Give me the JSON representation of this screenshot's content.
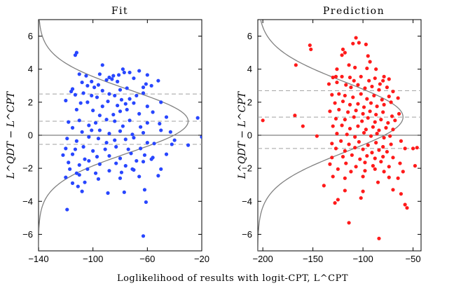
{
  "chart_data": [
    {
      "type": "scatter",
      "title": "Fit",
      "xlabel": "Loglikelihood of results with logit-CPT, L^CPT",
      "ylabel": "L^QDT − L^CPT",
      "xlim": [
        -140,
        -20
      ],
      "ylim": [
        -7,
        7
      ],
      "xticks": [
        -140,
        -100,
        -60,
        -20
      ],
      "yticks": [
        -6,
        -4,
        -2,
        0,
        2,
        4,
        6
      ],
      "point_color": "#2846ff",
      "zero_line": 0,
      "dashed_lines": [
        2.5,
        0.85,
        -0.55
      ],
      "density_curve": {
        "mu": 0.85,
        "sigma": 1.9,
        "peak_x": -30,
        "base_x": -140,
        "color": "#808080"
      },
      "points": [
        [
          -112,
          5
        ],
        [
          -113,
          4.85
        ],
        [
          -93,
          4.25
        ],
        [
          -110,
          3.7
        ],
        [
          -105,
          3.6
        ],
        [
          -95,
          3.7
        ],
        [
          -85,
          3.6
        ],
        [
          -81,
          3.65
        ],
        [
          -78,
          4
        ],
        [
          -77,
          3.8
        ],
        [
          -73,
          3.8
        ],
        [
          -70,
          3.45
        ],
        [
          -66,
          3.9
        ],
        [
          -60,
          3.65
        ],
        [
          -86,
          3.4
        ],
        [
          -88,
          3.5
        ],
        [
          -101,
          3.25
        ],
        [
          -96,
          3.05
        ],
        [
          -82,
          3.25
        ],
        [
          -90,
          3.35
        ],
        [
          -115,
          2.8
        ],
        [
          -108,
          3.2
        ],
        [
          -104,
          3.0
        ],
        [
          -99,
          2.9
        ],
        [
          -93,
          2.7
        ],
        [
          -80,
          2.75
        ],
        [
          -75,
          2.85
        ],
        [
          -63,
          2.9
        ],
        [
          -61,
          3.1
        ],
        [
          -57,
          3.0
        ],
        [
          -52,
          3.3
        ],
        [
          -116,
          2.65
        ],
        [
          -113,
          2.45
        ],
        [
          -107,
          2.55
        ],
        [
          -101,
          2.4
        ],
        [
          -97,
          2.3
        ],
        [
          -88,
          2.5
        ],
        [
          -84,
          2.4
        ],
        [
          -79,
          2.15
        ],
        [
          -73,
          2.2
        ],
        [
          -68,
          2.4
        ],
        [
          -63,
          2.55
        ],
        [
          -50,
          2.0
        ],
        [
          -120,
          2.1
        ],
        [
          -109,
          1.95
        ],
        [
          -104,
          2.0
        ],
        [
          -93,
          1.75
        ],
        [
          -89,
          2.05
        ],
        [
          -82,
          1.8
        ],
        [
          -76,
          1.9
        ],
        [
          -70,
          1.95
        ],
        [
          -60,
          1.75
        ],
        [
          -112,
          1.55
        ],
        [
          -100,
          1.5
        ],
        [
          -95,
          1.2
        ],
        [
          -85,
          1.25
        ],
        [
          -80,
          1.45
        ],
        [
          -75,
          1.55
        ],
        [
          -66,
          1.3
        ],
        [
          -56,
          1.4
        ],
        [
          -46,
          1.1
        ],
        [
          -23,
          1.05
        ],
        [
          -118,
          0.8
        ],
        [
          -115,
          0.45
        ],
        [
          -110,
          0.9
        ],
        [
          -103,
          0.6
        ],
        [
          -98,
          0.75
        ],
        [
          -90,
          0.95
        ],
        [
          -84,
          0.85
        ],
        [
          -78,
          0.55
        ],
        [
          -73,
          0.9
        ],
        [
          -65,
          0.5
        ],
        [
          -60,
          0.75
        ],
        [
          -51,
          0.7
        ],
        [
          -50,
          0.3
        ],
        [
          -43,
          0.2
        ],
        [
          -108,
          0.2
        ],
        [
          -101,
          0.3
        ],
        [
          -95,
          0.3
        ],
        [
          -88,
          0.1
        ],
        [
          -80,
          0.25
        ],
        [
          -71,
          0.05
        ],
        [
          -63,
          0.15
        ],
        [
          -119,
          -0.2
        ],
        [
          -112,
          -0.35
        ],
        [
          -103,
          -0.1
        ],
        [
          -96,
          -0.2
        ],
        [
          -90,
          -0.45
        ],
        [
          -84,
          -0.3
        ],
        [
          -76,
          -0.25
        ],
        [
          -70,
          -0.15
        ],
        [
          -60,
          -0.45
        ],
        [
          -55,
          -0.5
        ],
        [
          -42,
          -0.55
        ],
        [
          -40,
          -0.3
        ],
        [
          -30,
          -0.6
        ],
        [
          -20,
          -0.1
        ],
        [
          -120,
          -0.8
        ],
        [
          -113,
          -0.85
        ],
        [
          -107,
          -0.7
        ],
        [
          -100,
          -0.95
        ],
        [
          -91,
          -0.85
        ],
        [
          -83,
          -0.7
        ],
        [
          -74,
          -0.85
        ],
        [
          -65,
          -0.8
        ],
        [
          -122,
          -1.2
        ],
        [
          -115,
          -1.15
        ],
        [
          -106,
          -1.45
        ],
        [
          -97,
          -1.3
        ],
        [
          -88,
          -1.25
        ],
        [
          -80,
          -1.4
        ],
        [
          -72,
          -1.1
        ],
        [
          -62,
          -1.2
        ],
        [
          -56,
          -1.35
        ],
        [
          -46,
          -1.15
        ],
        [
          -118,
          -1.65
        ],
        [
          -110,
          -1.8
        ],
        [
          -103,
          -1.55
        ],
        [
          -95,
          -1.75
        ],
        [
          -83,
          -1.7
        ],
        [
          -76,
          -1.85
        ],
        [
          -68,
          -1.55
        ],
        [
          -63,
          -1.6
        ],
        [
          -57,
          -1.45
        ],
        [
          -117,
          -2.05
        ],
        [
          -112,
          -2.3
        ],
        [
          -104,
          -2.05
        ],
        [
          -98,
          -2.3
        ],
        [
          -88,
          -2.15
        ],
        [
          -79,
          -2.25
        ],
        [
          -71,
          -2.05
        ],
        [
          -70,
          -2.1
        ],
        [
          -50,
          -2.05
        ],
        [
          -120,
          -2.55
        ],
        [
          -110,
          -2.4
        ],
        [
          -96,
          -2.65
        ],
        [
          -80,
          -2.6
        ],
        [
          -66,
          -2.5
        ],
        [
          -52,
          -2.45
        ],
        [
          -115,
          -2.9
        ],
        [
          -111,
          -3.1
        ],
        [
          -106,
          -2.85
        ],
        [
          -89,
          -3.5
        ],
        [
          -77,
          -3.45
        ],
        [
          -62,
          -3.3
        ],
        [
          -108,
          -3.4
        ],
        [
          -61,
          -4.05
        ],
        [
          -119,
          -4.5
        ],
        [
          -63,
          -6.1
        ]
      ]
    },
    {
      "type": "scatter",
      "title": "Prediction",
      "xlabel": "",
      "ylabel": "L^QDT − L^CPT",
      "xlim": [
        -205,
        -42
      ],
      "ylim": [
        -7,
        7
      ],
      "xticks": [
        -200,
        -150,
        -100,
        -50
      ],
      "yticks": [
        -6,
        -4,
        -2,
        0,
        2,
        4,
        6
      ],
      "point_color": "#ff1a1a",
      "zero_line": 0,
      "dashed_lines": [
        2.7,
        1.1,
        -0.8
      ],
      "density_curve": {
        "mu": 1.1,
        "sigma": 2.1,
        "peak_x": -60,
        "base_x": -205,
        "color": "#808080"
      },
      "points": [
        [
          -107,
          5.9
        ],
        [
          -104,
          5.6
        ],
        [
          -110,
          5.55
        ],
        [
          -153,
          5.45
        ],
        [
          -152,
          5.2
        ],
        [
          -97,
          5.5
        ],
        [
          -120,
          5.2
        ],
        [
          -118,
          5.0
        ],
        [
          -121,
          4.85
        ],
        [
          -95,
          4.8
        ],
        [
          -93,
          4.45
        ],
        [
          -114,
          4.25
        ],
        [
          -108,
          4.1
        ],
        [
          -167,
          4.25
        ],
        [
          -126,
          4.0
        ],
        [
          -96,
          4.05
        ],
        [
          -87,
          4.0
        ],
        [
          -130,
          3.5
        ],
        [
          -127,
          3.55
        ],
        [
          -121,
          3.55
        ],
        [
          -113,
          3.5
        ],
        [
          -109,
          3.3
        ],
        [
          -102,
          3.55
        ],
        [
          -94,
          3.3
        ],
        [
          -88,
          3.45
        ],
        [
          -83,
          3.1
        ],
        [
          -80,
          3.3
        ],
        [
          -79,
          3.55
        ],
        [
          -74,
          3.4
        ],
        [
          -134,
          3.1
        ],
        [
          -126,
          3.2
        ],
        [
          -117,
          3.05
        ],
        [
          -112,
          2.9
        ],
        [
          -105,
          3.05
        ],
        [
          -98,
          2.85
        ],
        [
          -91,
          2.95
        ],
        [
          -84,
          2.75
        ],
        [
          -76,
          2.9
        ],
        [
          -70,
          2.65
        ],
        [
          -131,
          2.45
        ],
        [
          -124,
          2.5
        ],
        [
          -118,
          2.4
        ],
        [
          -110,
          2.3
        ],
        [
          -102,
          2.5
        ],
        [
          -96,
          2.2
        ],
        [
          -89,
          2.4
        ],
        [
          -81,
          2.15
        ],
        [
          -74,
          2.35
        ],
        [
          -65,
          2.25
        ],
        [
          -128,
          1.95
        ],
        [
          -120,
          2.05
        ],
        [
          -113,
          1.85
        ],
        [
          -105,
          1.9
        ],
        [
          -99,
          1.7
        ],
        [
          -92,
          1.95
        ],
        [
          -86,
          1.75
        ],
        [
          -79,
          1.85
        ],
        [
          -72,
          2.0
        ],
        [
          -133,
          1.45
        ],
        [
          -124,
          1.55
        ],
        [
          -115,
          1.4
        ],
        [
          -107,
          1.5
        ],
        [
          -100,
          1.3
        ],
        [
          -93,
          1.45
        ],
        [
          -87,
          1.25
        ],
        [
          -80,
          1.4
        ],
        [
          -71,
          1.15
        ],
        [
          -64,
          1.3
        ],
        [
          -168,
          1.2
        ],
        [
          -127,
          1.0
        ],
        [
          -118,
          0.95
        ],
        [
          -109,
          1.1
        ],
        [
          -101,
          0.85
        ],
        [
          -95,
          1.05
        ],
        [
          -88,
          0.8
        ],
        [
          -82,
          0.95
        ],
        [
          -75,
          0.75
        ],
        [
          -68,
          0.9
        ],
        [
          -200,
          0.9
        ],
        [
          -130,
          0.55
        ],
        [
          -121,
          0.6
        ],
        [
          -113,
          0.4
        ],
        [
          -105,
          0.55
        ],
        [
          -97,
          0.35
        ],
        [
          -90,
          0.5
        ],
        [
          -84,
          0.3
        ],
        [
          -77,
          0.45
        ],
        [
          -70,
          0.35
        ],
        [
          -160,
          0.55
        ],
        [
          -146,
          -0.05
        ],
        [
          -126,
          0.1
        ],
        [
          -116,
          0.05
        ],
        [
          -108,
          -0.1
        ],
        [
          -99,
          0.15
        ],
        [
          -92,
          -0.05
        ],
        [
          -86,
          0.1
        ],
        [
          -79,
          -0.15
        ],
        [
          -73,
          -0.05
        ],
        [
          -62,
          -0.35
        ],
        [
          -131,
          -0.5
        ],
        [
          -122,
          -0.35
        ],
        [
          -114,
          -0.55
        ],
        [
          -104,
          -0.4
        ],
        [
          -95,
          -0.6
        ],
        [
          -87,
          -0.45
        ],
        [
          -80,
          -0.7
        ],
        [
          -72,
          -0.55
        ],
        [
          -127,
          -0.8
        ],
        [
          -118,
          -0.95
        ],
        [
          -108,
          -0.75
        ],
        [
          -100,
          -0.85
        ],
        [
          -91,
          -1.05
        ],
        [
          -84,
          -0.9
        ],
        [
          -76,
          -1.0
        ],
        [
          -58,
          -0.8
        ],
        [
          -50,
          -0.8
        ],
        [
          -46,
          -0.75
        ],
        [
          -131,
          -1.35
        ],
        [
          -120,
          -1.3
        ],
        [
          -111,
          -1.2
        ],
        [
          -103,
          -1.45
        ],
        [
          -96,
          -1.25
        ],
        [
          -88,
          -1.4
        ],
        [
          -80,
          -1.3
        ],
        [
          -70,
          -1.35
        ],
        [
          -133,
          -1.75
        ],
        [
          -117,
          -1.7
        ],
        [
          -107,
          -1.9
        ],
        [
          -98,
          -1.65
        ],
        [
          -90,
          -1.85
        ],
        [
          -82,
          -1.6
        ],
        [
          -74,
          -1.9
        ],
        [
          -63,
          -1.7
        ],
        [
          -48,
          -1.85
        ],
        [
          -125,
          -2.05
        ],
        [
          -112,
          -2.2
        ],
        [
          -98,
          -2.15
        ],
        [
          -88,
          -2.05
        ],
        [
          -79,
          -2.2
        ],
        [
          -60,
          -2.2
        ],
        [
          -130,
          -2.5
        ],
        [
          -118,
          -2.6
        ],
        [
          -100,
          -2.5
        ],
        [
          -85,
          -2.85
        ],
        [
          -74,
          -2.55
        ],
        [
          -65,
          -2.6
        ],
        [
          -139,
          -3.05
        ],
        [
          -118,
          -3.35
        ],
        [
          -100,
          -3.4
        ],
        [
          -70,
          -3.3
        ],
        [
          -62,
          -3.55
        ],
        [
          -128,
          -4.1
        ],
        [
          -125,
          -3.9
        ],
        [
          -102,
          -3.8
        ],
        [
          -58,
          -4.2
        ],
        [
          -56,
          -4.4
        ],
        [
          -114,
          -5.3
        ],
        [
          -84,
          -6.25
        ]
      ]
    }
  ]
}
